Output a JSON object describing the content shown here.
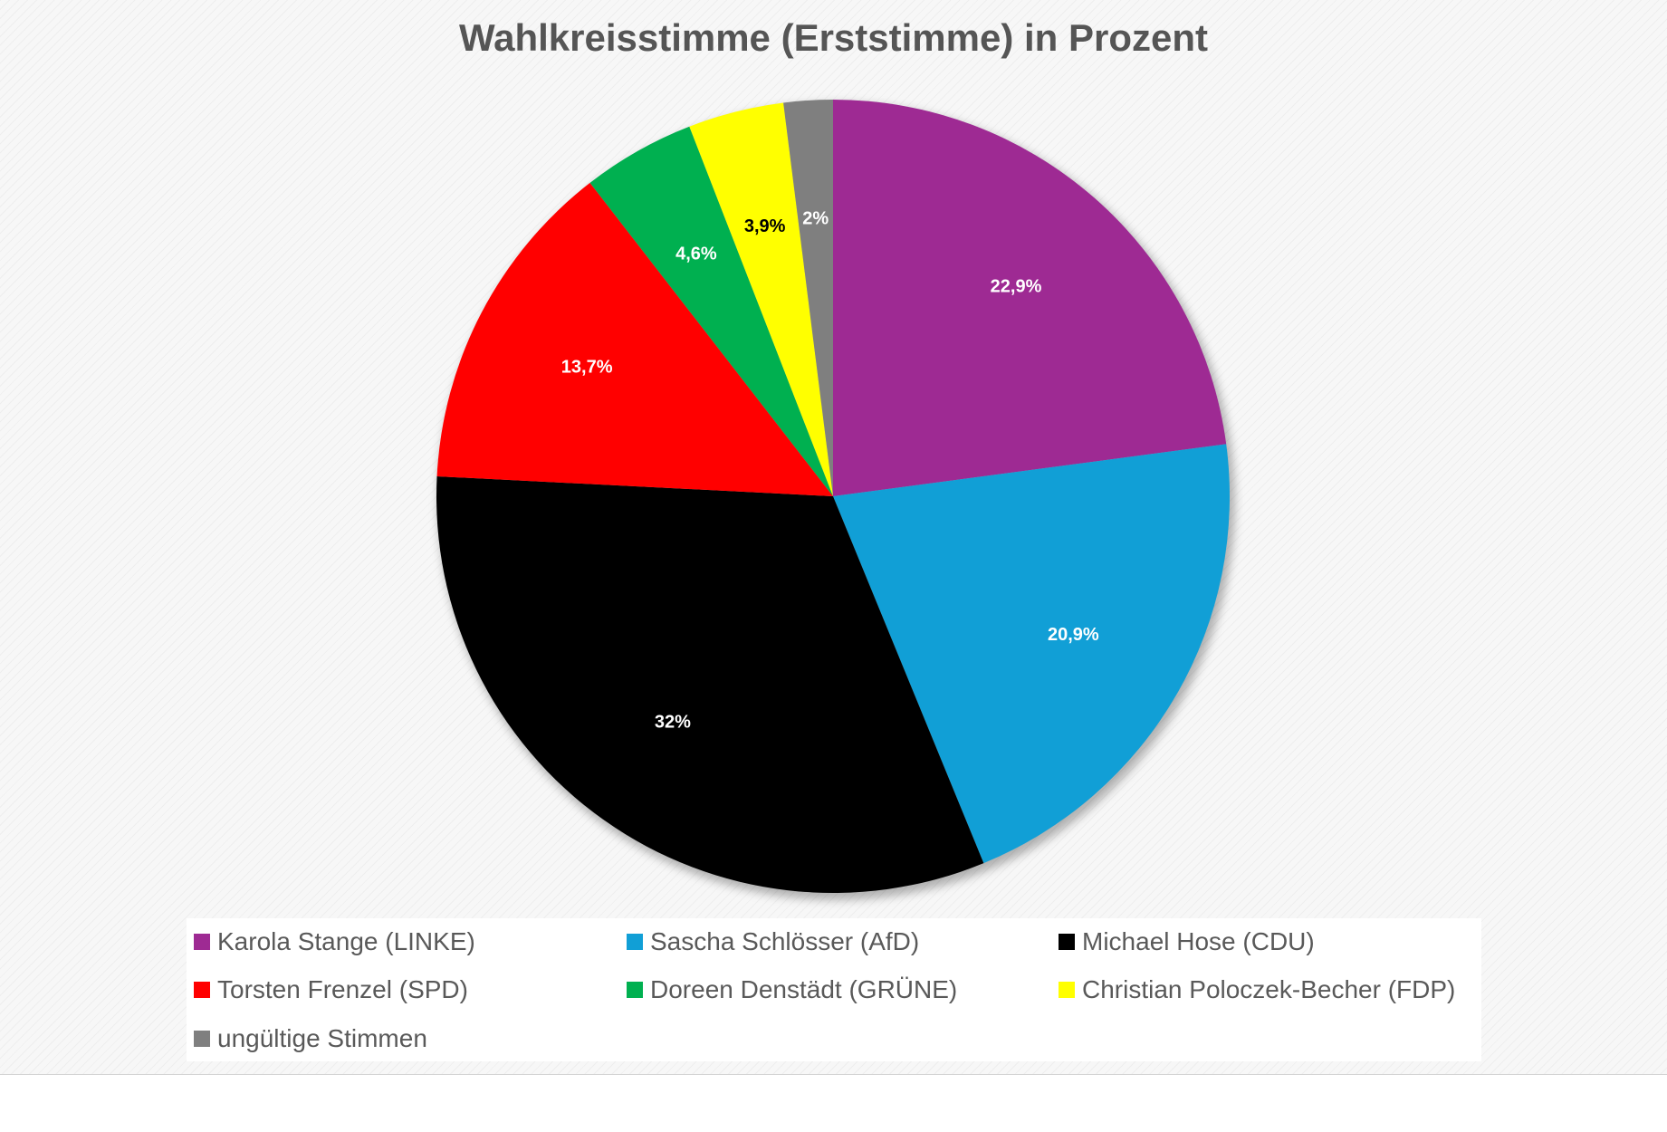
{
  "chart_data": {
    "type": "pie",
    "title": "Wahlkreisstimme (Erststimme) in Prozent",
    "start_angle": "12 o'clock",
    "direction": "clockwise",
    "legend_position": "bottom",
    "slices": [
      {
        "name": "Karola Stange (LINKE)",
        "value": 22.9,
        "label": "22,9%",
        "color": "#9e2a93",
        "label_color": "#ffffff"
      },
      {
        "name": "Sascha Schlösser (AfD)",
        "value": 20.9,
        "label": "20,9%",
        "color": "#119fd6",
        "label_color": "#ffffff"
      },
      {
        "name": "Michael Hose (CDU)",
        "value": 32.0,
        "label": "32%",
        "color": "#000000",
        "label_color": "#ffffff"
      },
      {
        "name": "Torsten Frenzel (SPD)",
        "value": 13.7,
        "label": "13,7%",
        "color": "#ff0000",
        "label_color": "#ffffff"
      },
      {
        "name": "Doreen Denstädt (GRÜNE)",
        "value": 4.6,
        "label": "4,6%",
        "color": "#00b050",
        "label_color": "#ffffff"
      },
      {
        "name": "Christian Poloczek-Becher (FDP)",
        "value": 3.9,
        "label": "3,9%",
        "color": "#ffff00",
        "label_color": "#000000"
      },
      {
        "name": "ungültige Stimmen",
        "value": 2.0,
        "label": "2%",
        "color": "#7f7f7f",
        "label_color": "#ffffff"
      }
    ]
  }
}
